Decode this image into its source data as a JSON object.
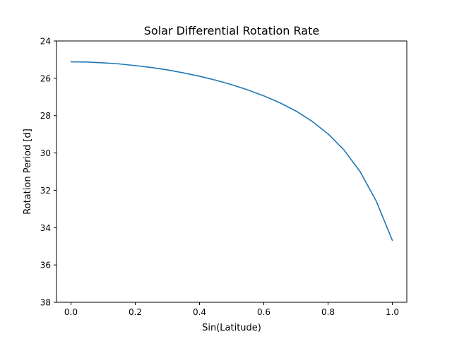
{
  "chart_data": {
    "type": "line",
    "title": "Solar Differential Rotation Rate",
    "xlabel": "Sin(Latitude)",
    "ylabel": "Rotation Period [d]",
    "xlim": [
      -0.045,
      1.045
    ],
    "ylim": [
      38,
      24
    ],
    "y_inverted": true,
    "grid": false,
    "xticks": [
      0.0,
      0.2,
      0.4,
      0.6,
      0.8,
      1.0
    ],
    "xtick_labels": [
      "0.0",
      "0.2",
      "0.4",
      "0.6",
      "0.8",
      "1.0"
    ],
    "yticks": [
      24,
      26,
      28,
      30,
      32,
      34,
      36,
      38
    ],
    "ytick_labels": [
      "24",
      "26",
      "28",
      "30",
      "32",
      "34",
      "36",
      "38"
    ],
    "series": [
      {
        "color": "#1f77b4",
        "x": [
          0.0,
          0.05,
          0.1,
          0.15,
          0.2,
          0.25,
          0.3,
          0.35,
          0.4,
          0.45,
          0.5,
          0.55,
          0.6,
          0.65,
          0.7,
          0.75,
          0.8,
          0.85,
          0.9,
          0.95,
          1.0
        ],
        "y": [
          25.12,
          25.13,
          25.17,
          25.23,
          25.32,
          25.42,
          25.55,
          25.71,
          25.89,
          26.1,
          26.34,
          26.62,
          26.94,
          27.31,
          27.75,
          28.3,
          28.98,
          29.85,
          31.01,
          32.58,
          34.68
        ]
      }
    ]
  }
}
